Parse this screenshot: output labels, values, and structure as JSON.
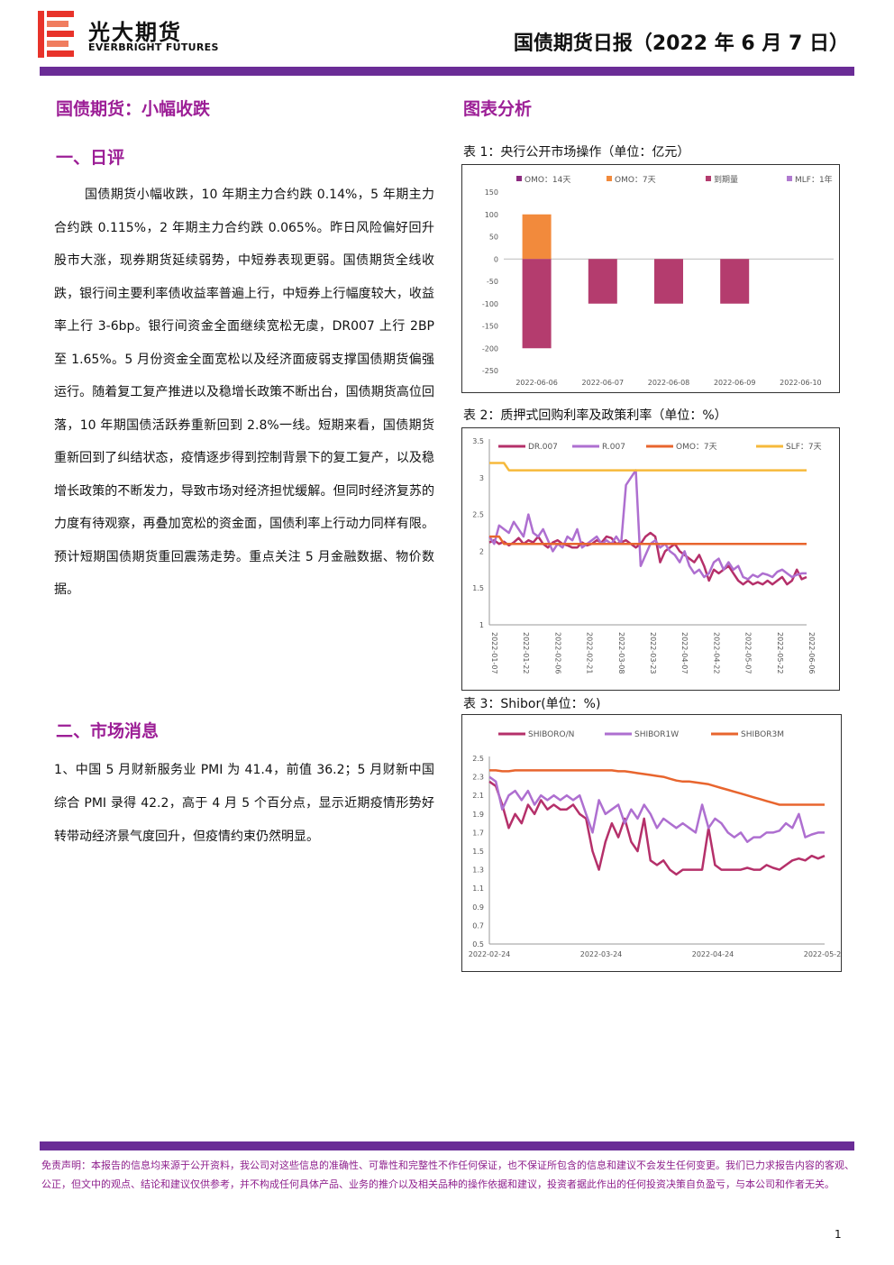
{
  "header": {
    "company_name": "光大期货",
    "company_name_en": "EVERBRIGHT FUTURES",
    "report_title": "国债期货日报（2022 年 6 月 7 日）",
    "brand_color": "#6a2c96",
    "logo_color": "#e8332a"
  },
  "left": {
    "main_title": "国债期货：小幅收跌",
    "section1_title": "一、日评",
    "section1_text": "国债期货小幅收跌，10 年期主力合约跌 0.14%，5 年期主力合约跌 0.115%，2 年期主力合约跌 0.065%。昨日风险偏好回升股市大涨，现券期货延续弱势，中短券表现更弱。国债期货全线收跌，银行间主要利率债收益率普遍上行，中短券上行幅度较大，收益率上行 3-6bp。银行间资金全面继续宽松无虞，DR007 上行 2BP 至 1.65%。5 月份资金全面宽松以及经济面疲弱支撑国债期货偏强运行。随着复工复产推进以及稳增长政策不断出台，国债期货高位回落，10 年期国债活跃券重新回到 2.8%一线。短期来看，国债期货重新回到了纠结状态，疫情逐步得到控制背景下的复工复产，以及稳增长政策的不断发力，导致市场对经济担忧缓解。但同时经济复苏的力度有待观察，再叠加宽松的资金面，国债利率上行动力同样有限。预计短期国债期货重回震荡走势。重点关注 5 月金融数据、物价数据。",
    "section2_title": "二、市场消息",
    "section2_text": "1、中国 5 月财新服务业 PMI 为 41.4，前值 36.2；5 月财新中国综合 PMI 录得 42.2，高于 4 月 5 个百分点，显示近期疫情形势好转带动经济景气度回升，但疫情约束仍然明显。"
  },
  "right": {
    "title": "图表分析",
    "chart1_caption": "表 1：央行公开市场操作（单位：亿元）",
    "chart2_caption": "表 2：质押式回购利率及政策利率（单位：%）",
    "chart3_caption": "表 3：Shibor(单位：%)"
  },
  "chart_data": [
    {
      "type": "bar",
      "categories": [
        "2022-06-06",
        "2022-06-07",
        "2022-06-08",
        "2022-06-09",
        "2022-06-10"
      ],
      "series": [
        {
          "name": "OMO：14天",
          "color": "#8c2a80",
          "values": [
            0,
            0,
            0,
            0,
            0
          ]
        },
        {
          "name": "OMO：7天",
          "color": "#f28a3c",
          "values": [
            100,
            0,
            0,
            0,
            0
          ]
        },
        {
          "name": "到期量",
          "color": "#b43c6e",
          "values": [
            -200,
            -100,
            -100,
            -100,
            0
          ]
        },
        {
          "name": "MLF：1年",
          "color": "#b07ad0",
          "values": [
            0,
            0,
            0,
            0,
            0
          ]
        }
      ],
      "yticks": [
        150,
        100,
        50,
        0,
        -50,
        -100,
        -150,
        -200,
        -250
      ],
      "ylim": [
        -250,
        150
      ],
      "legend": "top"
    },
    {
      "type": "line",
      "xticks": [
        "2022-01-07",
        "2022-01-22",
        "2022-02-06",
        "2022-02-21",
        "2022-03-08",
        "2022-03-23",
        "2022-04-07",
        "2022-04-22",
        "2022-05-07",
        "2022-05-22",
        "2022-06-06"
      ],
      "yticks": [
        3.5,
        3,
        2.5,
        2,
        1.5,
        1
      ],
      "ylim": [
        1,
        3.5
      ],
      "legend": "top",
      "series": [
        {
          "name": "DR.007",
          "color": "#b5306a",
          "values": [
            2.12,
            2.15,
            2.1,
            2.13,
            2.08,
            2.12,
            2.18,
            2.1,
            2.15,
            2.12,
            2.2,
            2.1,
            2.05,
            2.12,
            2.15,
            2.1,
            2.08,
            2.05,
            2.05,
            2.12,
            2.08,
            2.1,
            2.15,
            2.12,
            2.2,
            2.18,
            2.1,
            2.12,
            2.15,
            2.1,
            2.05,
            2.1,
            2.2,
            2.25,
            2.2,
            1.85,
            2.0,
            2.05,
            2.1,
            2.0,
            1.95,
            1.9,
            1.85,
            1.95,
            1.8,
            1.6,
            1.75,
            1.7,
            1.75,
            1.8,
            1.7,
            1.6,
            1.55,
            1.6,
            1.55,
            1.58,
            1.55,
            1.6,
            1.55,
            1.6,
            1.65,
            1.55,
            1.6,
            1.75,
            1.62,
            1.65
          ]
        },
        {
          "name": "R.007",
          "color": "#ae6fd0",
          "values": [
            2.2,
            2.1,
            2.35,
            2.3,
            2.25,
            2.4,
            2.3,
            2.2,
            2.5,
            2.25,
            2.2,
            2.3,
            2.15,
            2.0,
            2.1,
            2.05,
            2.2,
            2.15,
            2.3,
            2.05,
            2.1,
            2.15,
            2.2,
            2.1,
            2.15,
            2.1,
            2.2,
            2.1,
            2.9,
            3.0,
            3.1,
            1.8,
            1.95,
            2.1,
            2.15,
            2.05,
            2.1,
            2.0,
            1.95,
            1.85,
            2.0,
            1.8,
            1.7,
            1.75,
            1.65,
            1.7,
            1.85,
            1.9,
            1.75,
            1.85,
            1.75,
            1.8,
            1.65,
            1.62,
            1.68,
            1.65,
            1.7,
            1.68,
            1.65,
            1.72,
            1.75,
            1.7,
            1.65,
            1.68,
            1.7,
            1.7
          ]
        },
        {
          "name": "OMO：7天",
          "color": "#e8652e",
          "values": [
            2.2,
            2.2,
            2.2,
            2.1,
            2.1,
            2.1,
            2.1,
            2.1,
            2.1,
            2.1,
            2.1,
            2.1,
            2.1,
            2.1,
            2.1,
            2.1,
            2.1,
            2.1,
            2.1,
            2.1,
            2.1,
            2.1,
            2.1,
            2.1,
            2.1,
            2.1,
            2.1,
            2.1,
            2.1,
            2.1,
            2.1,
            2.1,
            2.1,
            2.1,
            2.1,
            2.1,
            2.1,
            2.1,
            2.1,
            2.1,
            2.1,
            2.1,
            2.1,
            2.1,
            2.1,
            2.1,
            2.1,
            2.1,
            2.1,
            2.1,
            2.1,
            2.1,
            2.1,
            2.1,
            2.1,
            2.1,
            2.1,
            2.1,
            2.1,
            2.1,
            2.1,
            2.1,
            2.1,
            2.1,
            2.1,
            2.1
          ]
        },
        {
          "name": "SLF：7天",
          "color": "#f6b93b",
          "values": [
            3.2,
            3.2,
            3.2,
            3.2,
            3.1,
            3.1,
            3.1,
            3.1,
            3.1,
            3.1,
            3.1,
            3.1,
            3.1,
            3.1,
            3.1,
            3.1,
            3.1,
            3.1,
            3.1,
            3.1,
            3.1,
            3.1,
            3.1,
            3.1,
            3.1,
            3.1,
            3.1,
            3.1,
            3.1,
            3.1,
            3.1,
            3.1,
            3.1,
            3.1,
            3.1,
            3.1,
            3.1,
            3.1,
            3.1,
            3.1,
            3.1,
            3.1,
            3.1,
            3.1,
            3.1,
            3.1,
            3.1,
            3.1,
            3.1,
            3.1,
            3.1,
            3.1,
            3.1,
            3.1,
            3.1,
            3.1,
            3.1,
            3.1,
            3.1,
            3.1,
            3.1,
            3.1,
            3.1,
            3.1,
            3.1,
            3.1
          ]
        }
      ]
    },
    {
      "type": "line",
      "xticks": [
        "2022-02-24",
        "2022-03-24",
        "2022-04-24",
        "2022-05-24"
      ],
      "yticks": [
        2.5,
        2.3,
        2.1,
        1.9,
        1.7,
        1.5,
        1.3,
        1.1,
        0.9,
        0.7,
        0.5
      ],
      "ylim": [
        0.5,
        2.5
      ],
      "legend": "top",
      "series": [
        {
          "name": "SHIBORO/N",
          "color": "#b5306a",
          "values": [
            2.25,
            2.2,
            2.0,
            1.75,
            1.9,
            1.8,
            2.0,
            1.9,
            2.05,
            1.95,
            2.0,
            1.95,
            1.95,
            2.0,
            1.9,
            1.85,
            1.5,
            1.3,
            1.6,
            1.8,
            1.65,
            1.85,
            1.6,
            1.5,
            1.85,
            1.4,
            1.35,
            1.4,
            1.3,
            1.25,
            1.3,
            1.3,
            1.3,
            1.3,
            1.75,
            1.35,
            1.3,
            1.3,
            1.3,
            1.3,
            1.32,
            1.3,
            1.3,
            1.35,
            1.32,
            1.3,
            1.35,
            1.4,
            1.42,
            1.4,
            1.45,
            1.42,
            1.45
          ]
        },
        {
          "name": "SHIBOR1W",
          "color": "#ae6fd0",
          "values": [
            2.3,
            2.25,
            1.95,
            2.1,
            2.15,
            2.05,
            2.15,
            2.0,
            2.1,
            2.05,
            2.1,
            2.05,
            2.1,
            2.05,
            2.1,
            1.9,
            1.7,
            2.05,
            1.9,
            1.95,
            2.0,
            1.8,
            1.95,
            1.85,
            2.0,
            1.9,
            1.75,
            1.85,
            1.8,
            1.75,
            1.8,
            1.75,
            1.7,
            2.0,
            1.75,
            1.85,
            1.8,
            1.7,
            1.65,
            1.7,
            1.6,
            1.65,
            1.65,
            1.7,
            1.7,
            1.72,
            1.8,
            1.75,
            1.9,
            1.65,
            1.68,
            1.7,
            1.7
          ]
        },
        {
          "name": "SHIBOR3M",
          "color": "#e8652e",
          "values": [
            2.37,
            2.37,
            2.36,
            2.36,
            2.37,
            2.37,
            2.37,
            2.37,
            2.37,
            2.37,
            2.37,
            2.37,
            2.37,
            2.37,
            2.37,
            2.37,
            2.37,
            2.37,
            2.37,
            2.37,
            2.36,
            2.36,
            2.35,
            2.34,
            2.33,
            2.32,
            2.31,
            2.3,
            2.28,
            2.26,
            2.25,
            2.25,
            2.24,
            2.23,
            2.22,
            2.2,
            2.18,
            2.16,
            2.14,
            2.12,
            2.1,
            2.08,
            2.06,
            2.04,
            2.02,
            2.0,
            2.0,
            2.0,
            2.0,
            2.0,
            2.0,
            2.0,
            2.0
          ]
        }
      ]
    }
  ],
  "footer": {
    "disclaimer": "免责声明：本报告的信息均来源于公开资料，我公司对这些信息的准确性、可靠性和完整性不作任何保证，也不保证所包含的信息和建议不会发生任何变更。我们已力求报告内容的客观、公正，但文中的观点、结论和建议仅供参考，并不构成任何具体产品、业务的推介以及相关品种的操作依据和建议，投资者据此作出的任何投资决策自负盈亏，与本公司和作者无关。",
    "page_number": "1"
  }
}
